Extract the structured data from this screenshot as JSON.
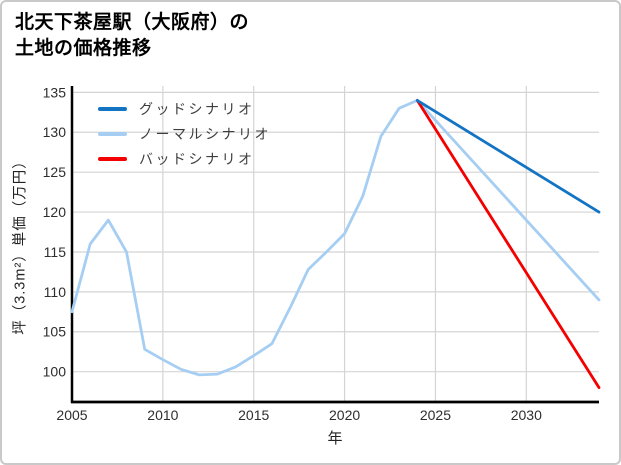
{
  "title": {
    "line1": "北天下茶屋駅（大阪府）の",
    "line2": "土地の価格推移"
  },
  "chart_data": {
    "type": "line",
    "title": "北天下茶屋駅（大阪府）の土地の価格推移",
    "xlabel": "年",
    "ylabel": "坪（3.3m²）単価（万円）",
    "xlim": [
      2005,
      2034
    ],
    "ylim": [
      96.2,
      135.8
    ],
    "xticks": [
      2005,
      2010,
      2015,
      2020,
      2025,
      2030
    ],
    "yticks": [
      100,
      105,
      110,
      115,
      120,
      125,
      130,
      135
    ],
    "grid": true,
    "grid_color": "#d4d4d4",
    "spine_color": "#000000",
    "legend_position": "upper-left",
    "series": [
      {
        "name": "グッドシナリオ",
        "color": "#1374c4",
        "zorder": 3,
        "x": [
          2024,
          2034
        ],
        "values": [
          134,
          120
        ]
      },
      {
        "name": "ノーマルシナリオ",
        "color": "#a6cef3",
        "zorder": 1,
        "x": [
          2005,
          2006,
          2007,
          2008,
          2009,
          2010,
          2011,
          2012,
          2013,
          2014,
          2015,
          2016,
          2017,
          2018,
          2019,
          2020,
          2021,
          2022,
          2023,
          2024,
          2034
        ],
        "values": [
          107.5,
          116,
          119,
          115,
          102.8,
          101.5,
          100.3,
          99.6,
          99.7,
          100.6,
          102,
          103.5,
          108,
          112.8,
          115,
          117.3,
          122,
          129.5,
          133,
          134,
          109
        ]
      },
      {
        "name": "バッドシナリオ",
        "color": "#f40000",
        "zorder": 2,
        "x": [
          2024,
          2034
        ],
        "values": [
          134,
          98
        ]
      }
    ]
  }
}
